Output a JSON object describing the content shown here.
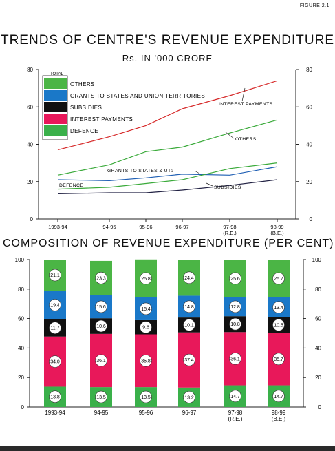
{
  "figure_label": "FIGURE 2.1",
  "colors": {
    "others": "#4bb545",
    "grants": "#1a78c8",
    "subsidies": "#111111",
    "interest": "#e8185a",
    "defence": "#3ab04a",
    "interest_line": "#d62828",
    "others_line": "#3aaa3a",
    "grants_line": "#1f5fb4",
    "subsidies_line": "#222244",
    "defence_line": "#3aaa3a"
  },
  "chart_data": [
    {
      "type": "line",
      "title": "TRENDS OF CENTRE'S REVENUE EXPENDITURE",
      "subtitle": "Rs. IN '000 CRORE",
      "x": [
        "1993-94",
        "94-95",
        "95-96",
        "96-97",
        "97-98\n(R.E.)",
        "98-99\n(B.E.)"
      ],
      "ylim": [
        0,
        80
      ],
      "yticks": [
        "0",
        "20",
        "40",
        "60",
        "80"
      ],
      "legend_title": "TOTAL",
      "legend": [
        "OTHERS",
        "GRANTS TO STATES AND UNION TERRITORIES",
        "SUBSIDIES",
        "INTEREST PAYMENTS",
        "DEFENCE"
      ],
      "series": [
        {
          "name": "INTEREST PAYMENTS",
          "label": "INTEREST PAYMENTS",
          "values": [
            37,
            44,
            50,
            59,
            66,
            74
          ]
        },
        {
          "name": "OTHERS",
          "label": "OTHERS",
          "values": [
            23.5,
            29,
            36,
            38.5,
            46,
            53
          ]
        },
        {
          "name": "GRANTS TO STATES AND UNION TERRITORIES",
          "label": "GRANTS TO STATES & UTs",
          "values": [
            21,
            20.5,
            22,
            24,
            23.5,
            28
          ]
        },
        {
          "name": "SUBSIDIES",
          "label": "SUBSIDIES",
          "values": [
            13.5,
            14,
            14,
            15.5,
            18,
            21
          ]
        },
        {
          "name": "DEFENCE",
          "label": "DEFENCE",
          "values": [
            16,
            17,
            19,
            21,
            27,
            30
          ]
        }
      ],
      "grid": false
    },
    {
      "type": "bar",
      "stacked": true,
      "title": "COMPOSITION OF REVENUE EXPENDITURE (PER CENT)",
      "categories": [
        "1993-94",
        "94-95",
        "95-96",
        "96-97",
        "97-98\n(R.E.)",
        "98-99\n(B.E.)"
      ],
      "ylim": [
        0,
        100
      ],
      "yticks": [
        "0",
        "20",
        "40",
        "60",
        "80",
        "100"
      ],
      "series": [
        {
          "name": "DEFENCE",
          "values": [
            13.8,
            13.5,
            13.5,
            13.2,
            14.7,
            14.7
          ]
        },
        {
          "name": "INTEREST PAYMENTS",
          "values": [
            34.0,
            36.1,
            35.8,
            37.4,
            36.1,
            35.7
          ]
        },
        {
          "name": "SUBSIDIES",
          "values": [
            11.7,
            10.6,
            9.6,
            10.1,
            10.8,
            10.5
          ]
        },
        {
          "name": "GRANTS TO STATES AND UNION TERRITORIES",
          "values": [
            19.4,
            15.6,
            15.4,
            14.8,
            12.8,
            13.4
          ]
        },
        {
          "name": "OTHERS",
          "values": [
            21.1,
            23.3,
            25.8,
            24.4,
            25.6,
            25.7
          ]
        }
      ],
      "value_labels": [
        [
          "13.8",
          "34.0",
          "11.7",
          "19.4",
          "21.1"
        ],
        [
          "13.5",
          "36.1",
          "10.6",
          "15.6",
          "23.3"
        ],
        [
          "13.5",
          "35.8",
          "9.6",
          "15.4",
          "25.8"
        ],
        [
          "13.2",
          "37.4",
          "10.1",
          "14.8",
          "24.4"
        ],
        [
          "14.7",
          "36.1",
          "10.8",
          "12.8",
          "25.6"
        ],
        [
          "14.7",
          "35.7",
          "10.5",
          "13.4",
          "25.7"
        ]
      ]
    }
  ]
}
